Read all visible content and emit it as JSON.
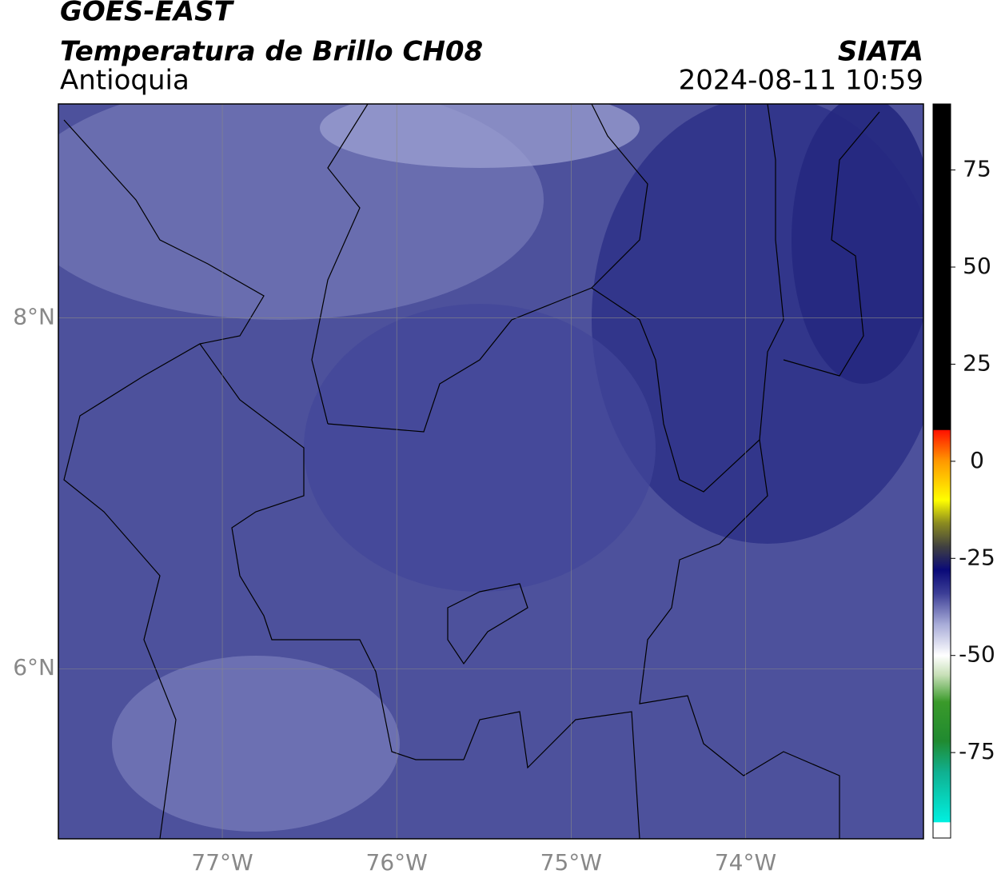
{
  "header": {
    "title": "GOES-EAST",
    "subtitle": "Temperatura de Brillo CH08",
    "region": "Antioquia",
    "source": "SIATA",
    "datetime": "2024-08-11 10:59"
  },
  "map": {
    "xlim": [
      -77.94,
      -72.98
    ],
    "ylim": [
      5.03,
      9.22
    ],
    "xticks": [
      {
        "value": -77,
        "label": "77°W"
      },
      {
        "value": -76,
        "label": "76°W"
      },
      {
        "value": -75,
        "label": "75°W"
      },
      {
        "value": -74,
        "label": "74°W"
      }
    ],
    "yticks": [
      {
        "value": 8,
        "label": "8°N"
      },
      {
        "value": 6,
        "label": "6°N"
      }
    ],
    "grid": true
  },
  "colorbar": {
    "lim": [
      -97,
      92
    ],
    "ticks": [
      75,
      50,
      25,
      0,
      -25,
      -50,
      -75
    ],
    "stops": [
      {
        "value": -97,
        "color": "#ffffff"
      },
      {
        "value": -93,
        "color": "#ffffff"
      },
      {
        "value": -92.9,
        "color": "#00f0e0"
      },
      {
        "value": -80,
        "color": "#10b090"
      },
      {
        "value": -72,
        "color": "#208a30"
      },
      {
        "value": -62,
        "color": "#3a9a2a"
      },
      {
        "value": -55,
        "color": "#c8e0b8"
      },
      {
        "value": -50,
        "color": "#ffffff"
      },
      {
        "value": -42,
        "color": "#a8acd8"
      },
      {
        "value": -34,
        "color": "#3c3e96"
      },
      {
        "value": -28,
        "color": "#0a0a78"
      },
      {
        "value": -22,
        "color": "#404040"
      },
      {
        "value": -16,
        "color": "#8a8a20"
      },
      {
        "value": -10,
        "color": "#ffff00"
      },
      {
        "value": 0,
        "color": "#ff9900"
      },
      {
        "value": 8,
        "color": "#ff1100"
      },
      {
        "value": 8.1,
        "color": "#000000"
      },
      {
        "value": 92,
        "color": "#000000"
      }
    ]
  }
}
